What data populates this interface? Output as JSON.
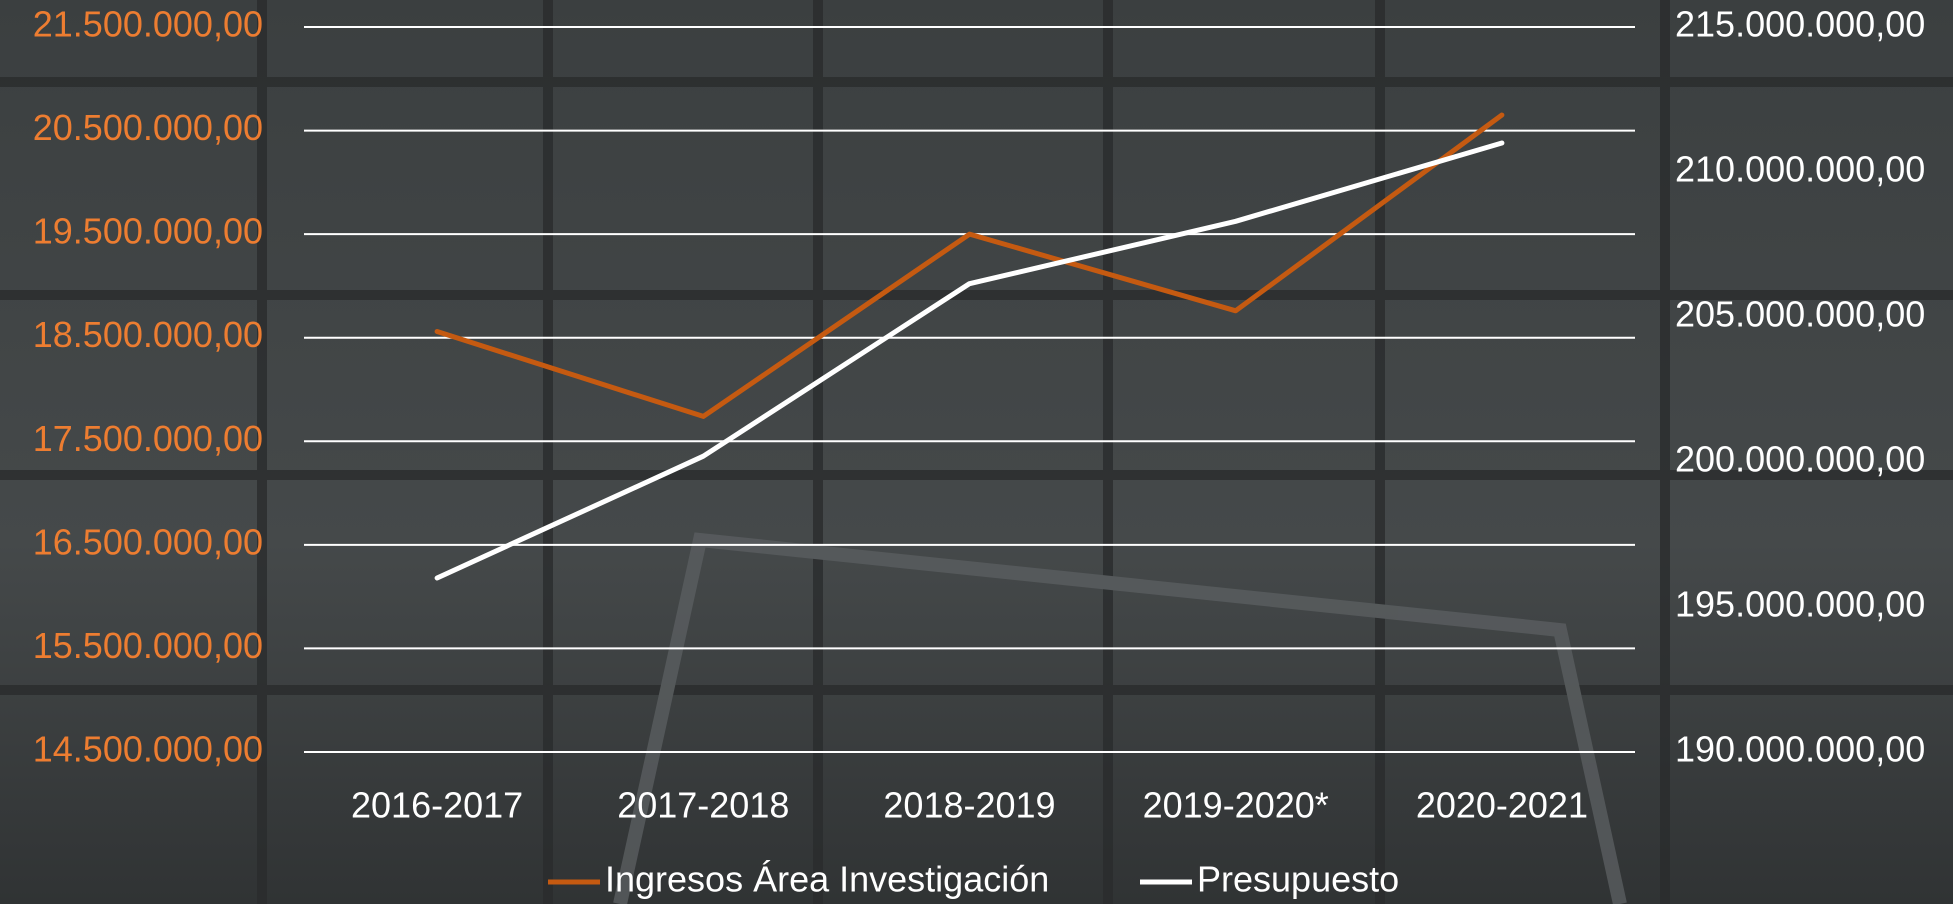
{
  "chart_data": {
    "type": "line",
    "categories": [
      "2016-2017",
      "2017-2018",
      "2018-2019",
      "2019-2020*",
      "2020-2021"
    ],
    "series": [
      {
        "name": "Ingresos Área Investigación",
        "color": "#c55a11",
        "values": [
          18560000,
          17740000,
          19500000,
          18760000,
          20650000
        ]
      },
      {
        "name": "Presupuesto",
        "color": "#ffffff",
        "axis": "y2",
        "values": [
          196000000,
          200200000,
          206150000,
          208300000,
          211000000
        ]
      }
    ],
    "ylim": [
      14500000,
      21500000
    ],
    "yticks": [
      {
        "value": 14500000,
        "label": "14.500.000,00"
      },
      {
        "value": 15500000,
        "label": "15.500.000,00"
      },
      {
        "value": 16500000,
        "label": "16.500.000,00"
      },
      {
        "value": 17500000,
        "label": "17.500.000,00"
      },
      {
        "value": 18500000,
        "label": "18.500.000,00"
      },
      {
        "value": 19500000,
        "label": "19.500.000,00"
      },
      {
        "value": 20500000,
        "label": "20.500.000,00"
      },
      {
        "value": 21500000,
        "label": "21.500.000,00"
      }
    ],
    "y2lim": [
      190000000,
      215000000
    ],
    "y2ticks": [
      {
        "value": 190000000,
        "label": "190.000.000,00"
      },
      {
        "value": 195000000,
        "label": "195.000.000,00"
      },
      {
        "value": 200000000,
        "label": "200.000.000,00"
      },
      {
        "value": 205000000,
        "label": "205.000.000,00"
      },
      {
        "value": 210000000,
        "label": "210.000.000,00"
      },
      {
        "value": 215000000,
        "label": "215.000.000,00"
      }
    ],
    "ytick_color": "#ed7d31",
    "y2tick_color": "#ffffff",
    "grid": true,
    "legend": "bottom"
  }
}
